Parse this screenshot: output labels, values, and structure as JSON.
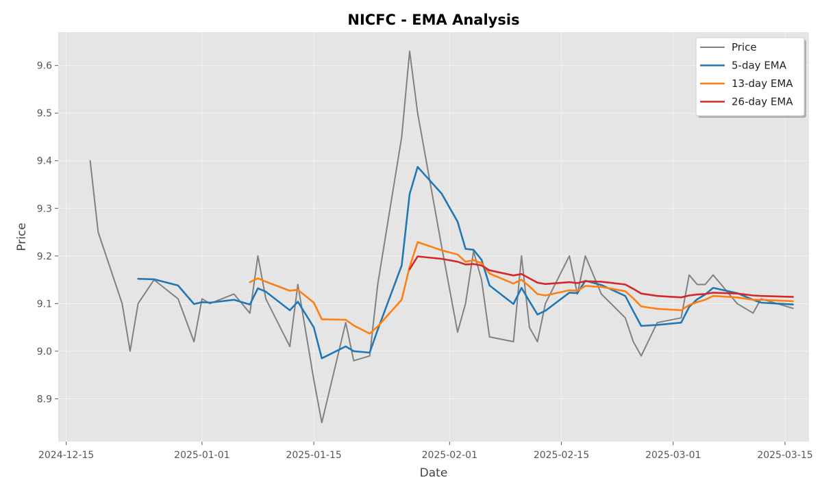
{
  "chart_data": {
    "type": "line",
    "title": "NICFC - EMA Analysis",
    "xlabel": "Date",
    "ylabel": "Price",
    "x_type": "date",
    "xlim": [
      "2024-12-14",
      "2025-03-18"
    ],
    "ylim": [
      8.81,
      9.67
    ],
    "x_ticks": [
      {
        "date": "2024-12-15",
        "label": "2024-12-15"
      },
      {
        "date": "2025-01-01",
        "label": "2025-01-01"
      },
      {
        "date": "2025-01-15",
        "label": "2025-01-15"
      },
      {
        "date": "2025-02-01",
        "label": "2025-02-01"
      },
      {
        "date": "2025-02-15",
        "label": "2025-02-15"
      },
      {
        "date": "2025-03-01",
        "label": "2025-03-01"
      },
      {
        "date": "2025-03-15",
        "label": "2025-03-15"
      }
    ],
    "y_ticks": [
      8.9,
      9.0,
      9.1,
      9.2,
      9.3,
      9.4,
      9.5,
      9.6
    ],
    "y_tick_labels": [
      "8.9",
      "9.0",
      "9.1",
      "9.2",
      "9.3",
      "9.4",
      "9.5",
      "9.6"
    ],
    "grid": true,
    "legend_position": "top-right",
    "series": [
      {
        "name": "Price",
        "color": "#808080",
        "points": [
          [
            "2024-12-18",
            9.4
          ],
          [
            "2024-12-19",
            9.25
          ],
          [
            "2024-12-22",
            9.1
          ],
          [
            "2024-12-23",
            9.0
          ],
          [
            "2024-12-24",
            9.1
          ],
          [
            "2024-12-26",
            9.15
          ],
          [
            "2024-12-29",
            9.11
          ],
          [
            "2024-12-31",
            9.02
          ],
          [
            "2025-01-01",
            9.11
          ],
          [
            "2025-01-02",
            9.1
          ],
          [
            "2025-01-05",
            9.12
          ],
          [
            "2025-01-07",
            9.08
          ],
          [
            "2025-01-08",
            9.2
          ],
          [
            "2025-01-09",
            9.11
          ],
          [
            "2025-01-12",
            9.01
          ],
          [
            "2025-01-13",
            9.14
          ],
          [
            "2025-01-15",
            8.94
          ],
          [
            "2025-01-16",
            8.85
          ],
          [
            "2025-01-19",
            9.06
          ],
          [
            "2025-01-20",
            8.98
          ],
          [
            "2025-01-22",
            8.99
          ],
          [
            "2025-01-23",
            9.14
          ],
          [
            "2025-01-26",
            9.45
          ],
          [
            "2025-01-27",
            9.63
          ],
          [
            "2025-01-28",
            9.5
          ],
          [
            "2025-01-31",
            9.22
          ],
          [
            "2025-02-02",
            9.04
          ],
          [
            "2025-02-03",
            9.1
          ],
          [
            "2025-02-04",
            9.21
          ],
          [
            "2025-02-05",
            9.15
          ],
          [
            "2025-02-06",
            9.03
          ],
          [
            "2025-02-09",
            9.02
          ],
          [
            "2025-02-10",
            9.2
          ],
          [
            "2025-02-11",
            9.05
          ],
          [
            "2025-02-12",
            9.02
          ],
          [
            "2025-02-13",
            9.1
          ],
          [
            "2025-02-16",
            9.2
          ],
          [
            "2025-02-17",
            9.12
          ],
          [
            "2025-02-18",
            9.2
          ],
          [
            "2025-02-20",
            9.12
          ],
          [
            "2025-02-23",
            9.07
          ],
          [
            "2025-02-24",
            9.02
          ],
          [
            "2025-02-25",
            8.99
          ],
          [
            "2025-02-27",
            9.06
          ],
          [
            "2025-03-02",
            9.07
          ],
          [
            "2025-03-03",
            9.16
          ],
          [
            "2025-03-04",
            9.14
          ],
          [
            "2025-03-05",
            9.14
          ],
          [
            "2025-03-06",
            9.16
          ],
          [
            "2025-03-09",
            9.1
          ],
          [
            "2025-03-11",
            9.08
          ],
          [
            "2025-03-12",
            9.11
          ],
          [
            "2025-03-16",
            9.09
          ]
        ]
      },
      {
        "name": "5-day EMA",
        "color": "#1f77b4",
        "points": [
          [
            "2024-12-24",
            9.152
          ],
          [
            "2024-12-26",
            9.151
          ],
          [
            "2024-12-29",
            9.138
          ],
          [
            "2024-12-31",
            9.099
          ],
          [
            "2025-01-01",
            9.103
          ],
          [
            "2025-01-02",
            9.102
          ],
          [
            "2025-01-05",
            9.108
          ],
          [
            "2025-01-07",
            9.098
          ],
          [
            "2025-01-08",
            9.132
          ],
          [
            "2025-01-09",
            9.125
          ],
          [
            "2025-01-12",
            9.086
          ],
          [
            "2025-01-13",
            9.104
          ],
          [
            "2025-01-15",
            9.05
          ],
          [
            "2025-01-16",
            8.985
          ],
          [
            "2025-01-19",
            9.01
          ],
          [
            "2025-01-20",
            9.0
          ],
          [
            "2025-01-22",
            8.997
          ],
          [
            "2025-01-23",
            9.045
          ],
          [
            "2025-01-26",
            9.18
          ],
          [
            "2025-01-27",
            9.33
          ],
          [
            "2025-01-28",
            9.387
          ],
          [
            "2025-01-31",
            9.331
          ],
          [
            "2025-02-02",
            9.272
          ],
          [
            "2025-02-03",
            9.215
          ],
          [
            "2025-02-04",
            9.213
          ],
          [
            "2025-02-05",
            9.192
          ],
          [
            "2025-02-06",
            9.138
          ],
          [
            "2025-02-09",
            9.099
          ],
          [
            "2025-02-10",
            9.133
          ],
          [
            "2025-02-11",
            9.105
          ],
          [
            "2025-02-12",
            9.077
          ],
          [
            "2025-02-13",
            9.085
          ],
          [
            "2025-02-16",
            9.123
          ],
          [
            "2025-02-17",
            9.122
          ],
          [
            "2025-02-18",
            9.148
          ],
          [
            "2025-02-20",
            9.139
          ],
          [
            "2025-02-23",
            9.116
          ],
          [
            "2025-02-24",
            9.084
          ],
          [
            "2025-02-25",
            9.053
          ],
          [
            "2025-02-27",
            9.055
          ],
          [
            "2025-03-02",
            9.06
          ],
          [
            "2025-03-03",
            9.093
          ],
          [
            "2025-03-04",
            9.109
          ],
          [
            "2025-03-05",
            9.119
          ],
          [
            "2025-03-06",
            9.133
          ],
          [
            "2025-03-09",
            9.122
          ],
          [
            "2025-03-11",
            9.108
          ],
          [
            "2025-03-12",
            9.102
          ],
          [
            "2025-03-16",
            9.098
          ]
        ]
      },
      {
        "name": "13-day EMA",
        "color": "#ff7f0e",
        "points": [
          [
            "2025-01-07",
            9.145
          ],
          [
            "2025-01-08",
            9.153
          ],
          [
            "2025-01-09",
            9.146
          ],
          [
            "2025-01-12",
            9.127
          ],
          [
            "2025-01-13",
            9.129
          ],
          [
            "2025-01-15",
            9.102
          ],
          [
            "2025-01-16",
            9.067
          ],
          [
            "2025-01-19",
            9.066
          ],
          [
            "2025-01-20",
            9.054
          ],
          [
            "2025-01-22",
            9.037
          ],
          [
            "2025-01-23",
            9.052
          ],
          [
            "2025-01-26",
            9.108
          ],
          [
            "2025-01-27",
            9.177
          ],
          [
            "2025-01-28",
            9.229
          ],
          [
            "2025-01-31",
            9.212
          ],
          [
            "2025-02-02",
            9.203
          ],
          [
            "2025-02-03",
            9.188
          ],
          [
            "2025-02-04",
            9.191
          ],
          [
            "2025-02-05",
            9.185
          ],
          [
            "2025-02-06",
            9.163
          ],
          [
            "2025-02-09",
            9.142
          ],
          [
            "2025-02-10",
            9.15
          ],
          [
            "2025-02-11",
            9.136
          ],
          [
            "2025-02-12",
            9.12
          ],
          [
            "2025-02-13",
            9.117
          ],
          [
            "2025-02-16",
            9.128
          ],
          [
            "2025-02-17",
            9.127
          ],
          [
            "2025-02-18",
            9.137
          ],
          [
            "2025-02-20",
            9.135
          ],
          [
            "2025-02-23",
            9.126
          ],
          [
            "2025-02-24",
            9.111
          ],
          [
            "2025-02-25",
            9.094
          ],
          [
            "2025-02-27",
            9.089
          ],
          [
            "2025-03-02",
            9.086
          ],
          [
            "2025-03-03",
            9.097
          ],
          [
            "2025-03-04",
            9.103
          ],
          [
            "2025-03-05",
            9.108
          ],
          [
            "2025-03-06",
            9.116
          ],
          [
            "2025-03-09",
            9.113
          ],
          [
            "2025-03-11",
            9.108
          ],
          [
            "2025-03-12",
            9.108
          ],
          [
            "2025-03-16",
            9.105
          ]
        ]
      },
      {
        "name": "26-day EMA",
        "color": "#d62728",
        "points": [
          [
            "2025-01-27",
            9.172
          ],
          [
            "2025-01-28",
            9.199
          ],
          [
            "2025-01-31",
            9.194
          ],
          [
            "2025-02-02",
            9.188
          ],
          [
            "2025-02-03",
            9.182
          ],
          [
            "2025-02-04",
            9.183
          ],
          [
            "2025-02-05",
            9.18
          ],
          [
            "2025-02-06",
            9.17
          ],
          [
            "2025-02-09",
            9.159
          ],
          [
            "2025-02-10",
            9.162
          ],
          [
            "2025-02-11",
            9.153
          ],
          [
            "2025-02-12",
            9.144
          ],
          [
            "2025-02-13",
            9.141
          ],
          [
            "2025-02-16",
            9.145
          ],
          [
            "2025-02-17",
            9.143
          ],
          [
            "2025-02-18",
            9.147
          ],
          [
            "2025-02-20",
            9.146
          ],
          [
            "2025-02-23",
            9.14
          ],
          [
            "2025-02-24",
            9.131
          ],
          [
            "2025-02-25",
            9.121
          ],
          [
            "2025-02-27",
            9.116
          ],
          [
            "2025-03-02",
            9.113
          ],
          [
            "2025-03-03",
            9.117
          ],
          [
            "2025-03-04",
            9.119
          ],
          [
            "2025-03-05",
            9.12
          ],
          [
            "2025-03-06",
            9.123
          ],
          [
            "2025-03-09",
            9.121
          ],
          [
            "2025-03-11",
            9.117
          ],
          [
            "2025-03-12",
            9.116
          ],
          [
            "2025-03-16",
            9.114
          ]
        ]
      }
    ]
  }
}
